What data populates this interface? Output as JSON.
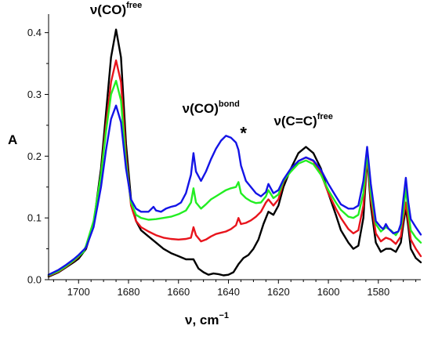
{
  "chart_data": {
    "type": "line",
    "xlabel_main": "ν, cm",
    "xlabel_sup": "−1",
    "ylabel": "A",
    "xlim": [
      1712,
      1563
    ],
    "ylim": [
      0,
      0.43
    ],
    "x_reversed": true,
    "grid": false,
    "x_ticks": [
      1700,
      1680,
      1660,
      1640,
      1620,
      1600,
      1580
    ],
    "x_tick_labels": [
      "1700",
      "1680",
      "1660",
      "1640",
      "1620",
      "1600",
      "1580"
    ],
    "y_ticks": [
      0.0,
      0.1,
      0.2,
      0.3,
      0.4
    ],
    "y_tick_labels": [
      "0.0",
      "0.1",
      "0.2",
      "0.3",
      "0.4"
    ],
    "annotations": [
      {
        "main": "ν(CO)",
        "sup": "free",
        "x": 1685,
        "y": 0.43
      },
      {
        "main": "ν(CO)",
        "sup": "bond",
        "x": 1647,
        "y": 0.27
      },
      {
        "main": "ν(C=C)",
        "sup": "free",
        "x": 1610,
        "y": 0.25
      },
      {
        "main": "*",
        "sup": "",
        "x": 1634,
        "y": 0.235
      }
    ],
    "series": [
      {
        "color": "#000000",
        "points": [
          [
            1712,
            0.005
          ],
          [
            1708,
            0.012
          ],
          [
            1705,
            0.02
          ],
          [
            1702,
            0.028
          ],
          [
            1700,
            0.034
          ],
          [
            1697,
            0.05
          ],
          [
            1694,
            0.09
          ],
          [
            1691,
            0.18
          ],
          [
            1689,
            0.27
          ],
          [
            1687,
            0.36
          ],
          [
            1685,
            0.405
          ],
          [
            1683,
            0.36
          ],
          [
            1681,
            0.22
          ],
          [
            1679,
            0.13
          ],
          [
            1677,
            0.095
          ],
          [
            1675,
            0.08
          ],
          [
            1672,
            0.07
          ],
          [
            1669,
            0.06
          ],
          [
            1666,
            0.05
          ],
          [
            1663,
            0.043
          ],
          [
            1660,
            0.038
          ],
          [
            1657,
            0.033
          ],
          [
            1654,
            0.033
          ],
          [
            1652,
            0.018
          ],
          [
            1650,
            0.012
          ],
          [
            1648,
            0.008
          ],
          [
            1646,
            0.01
          ],
          [
            1644,
            0.009
          ],
          [
            1642,
            0.007
          ],
          [
            1640,
            0.008
          ],
          [
            1638,
            0.012
          ],
          [
            1636,
            0.025
          ],
          [
            1634,
            0.035
          ],
          [
            1632,
            0.04
          ],
          [
            1630,
            0.05
          ],
          [
            1628,
            0.065
          ],
          [
            1626,
            0.09
          ],
          [
            1624,
            0.11
          ],
          [
            1622,
            0.105
          ],
          [
            1620,
            0.12
          ],
          [
            1618,
            0.15
          ],
          [
            1615,
            0.18
          ],
          [
            1612,
            0.205
          ],
          [
            1609,
            0.215
          ],
          [
            1606,
            0.205
          ],
          [
            1603,
            0.18
          ],
          [
            1600,
            0.14
          ],
          [
            1597,
            0.105
          ],
          [
            1595,
            0.08
          ],
          [
            1592,
            0.06
          ],
          [
            1590,
            0.05
          ],
          [
            1588,
            0.055
          ],
          [
            1586,
            0.1
          ],
          [
            1584.5,
            0.198
          ],
          [
            1583,
            0.12
          ],
          [
            1581,
            0.06
          ],
          [
            1579,
            0.045
          ],
          [
            1577,
            0.05
          ],
          [
            1575,
            0.05
          ],
          [
            1573,
            0.045
          ],
          [
            1571,
            0.06
          ],
          [
            1570,
            0.09
          ],
          [
            1569,
            0.117
          ],
          [
            1568,
            0.085
          ],
          [
            1567,
            0.05
          ],
          [
            1565,
            0.035
          ],
          [
            1563,
            0.028
          ]
        ]
      },
      {
        "color": "#e8141c",
        "points": [
          [
            1712,
            0.006
          ],
          [
            1708,
            0.013
          ],
          [
            1705,
            0.021
          ],
          [
            1702,
            0.03
          ],
          [
            1700,
            0.037
          ],
          [
            1697,
            0.052
          ],
          [
            1694,
            0.09
          ],
          [
            1691,
            0.17
          ],
          [
            1689,
            0.25
          ],
          [
            1687,
            0.32
          ],
          [
            1685,
            0.355
          ],
          [
            1683,
            0.32
          ],
          [
            1681,
            0.2
          ],
          [
            1679,
            0.12
          ],
          [
            1677,
            0.095
          ],
          [
            1675,
            0.085
          ],
          [
            1672,
            0.078
          ],
          [
            1669,
            0.072
          ],
          [
            1666,
            0.068
          ],
          [
            1663,
            0.066
          ],
          [
            1660,
            0.065
          ],
          [
            1657,
            0.066
          ],
          [
            1655,
            0.068
          ],
          [
            1654,
            0.085
          ],
          [
            1653,
            0.072
          ],
          [
            1651,
            0.062
          ],
          [
            1649,
            0.065
          ],
          [
            1647,
            0.07
          ],
          [
            1645,
            0.074
          ],
          [
            1643,
            0.076
          ],
          [
            1641,
            0.078
          ],
          [
            1639,
            0.082
          ],
          [
            1637,
            0.088
          ],
          [
            1636,
            0.1
          ],
          [
            1635,
            0.09
          ],
          [
            1633,
            0.092
          ],
          [
            1631,
            0.096
          ],
          [
            1629,
            0.102
          ],
          [
            1627,
            0.11
          ],
          [
            1625,
            0.125
          ],
          [
            1624,
            0.13
          ],
          [
            1622,
            0.12
          ],
          [
            1620,
            0.13
          ],
          [
            1618,
            0.158
          ],
          [
            1615,
            0.178
          ],
          [
            1612,
            0.192
          ],
          [
            1609,
            0.198
          ],
          [
            1606,
            0.192
          ],
          [
            1603,
            0.172
          ],
          [
            1600,
            0.14
          ],
          [
            1597,
            0.115
          ],
          [
            1595,
            0.1
          ],
          [
            1592,
            0.082
          ],
          [
            1590,
            0.075
          ],
          [
            1588,
            0.08
          ],
          [
            1586,
            0.12
          ],
          [
            1584.5,
            0.2
          ],
          [
            1583,
            0.13
          ],
          [
            1581,
            0.075
          ],
          [
            1579,
            0.062
          ],
          [
            1577,
            0.068
          ],
          [
            1575,
            0.065
          ],
          [
            1573,
            0.058
          ],
          [
            1571,
            0.07
          ],
          [
            1570,
            0.1
          ],
          [
            1569,
            0.125
          ],
          [
            1568,
            0.095
          ],
          [
            1567,
            0.065
          ],
          [
            1565,
            0.05
          ],
          [
            1563,
            0.038
          ]
        ]
      },
      {
        "color": "#22ee22",
        "points": [
          [
            1712,
            0.007
          ],
          [
            1708,
            0.014
          ],
          [
            1705,
            0.022
          ],
          [
            1702,
            0.031
          ],
          [
            1700,
            0.038
          ],
          [
            1698,
            0.045
          ],
          [
            1697,
            0.055
          ],
          [
            1694,
            0.095
          ],
          [
            1691,
            0.17
          ],
          [
            1689,
            0.24
          ],
          [
            1687,
            0.3
          ],
          [
            1685,
            0.322
          ],
          [
            1683,
            0.29
          ],
          [
            1681,
            0.19
          ],
          [
            1679,
            0.125
          ],
          [
            1677,
            0.105
          ],
          [
            1675,
            0.1
          ],
          [
            1672,
            0.097
          ],
          [
            1669,
            0.098
          ],
          [
            1666,
            0.1
          ],
          [
            1663,
            0.102
          ],
          [
            1660,
            0.106
          ],
          [
            1657,
            0.112
          ],
          [
            1655,
            0.125
          ],
          [
            1654,
            0.148
          ],
          [
            1653,
            0.125
          ],
          [
            1651,
            0.115
          ],
          [
            1649,
            0.122
          ],
          [
            1647,
            0.13
          ],
          [
            1645,
            0.135
          ],
          [
            1643,
            0.14
          ],
          [
            1641,
            0.145
          ],
          [
            1639,
            0.148
          ],
          [
            1637,
            0.15
          ],
          [
            1636,
            0.158
          ],
          [
            1635,
            0.14
          ],
          [
            1633,
            0.132
          ],
          [
            1631,
            0.127
          ],
          [
            1629,
            0.124
          ],
          [
            1627,
            0.125
          ],
          [
            1625,
            0.135
          ],
          [
            1624,
            0.145
          ],
          [
            1622,
            0.132
          ],
          [
            1620,
            0.138
          ],
          [
            1618,
            0.16
          ],
          [
            1615,
            0.175
          ],
          [
            1612,
            0.188
          ],
          [
            1609,
            0.193
          ],
          [
            1606,
            0.187
          ],
          [
            1603,
            0.17
          ],
          [
            1600,
            0.145
          ],
          [
            1597,
            0.125
          ],
          [
            1595,
            0.113
          ],
          [
            1592,
            0.102
          ],
          [
            1590,
            0.1
          ],
          [
            1588,
            0.105
          ],
          [
            1586,
            0.14
          ],
          [
            1584.5,
            0.205
          ],
          [
            1583,
            0.14
          ],
          [
            1581,
            0.09
          ],
          [
            1579,
            0.078
          ],
          [
            1577,
            0.085
          ],
          [
            1575,
            0.08
          ],
          [
            1573,
            0.072
          ],
          [
            1571,
            0.085
          ],
          [
            1570,
            0.11
          ],
          [
            1569,
            0.148
          ],
          [
            1568,
            0.11
          ],
          [
            1567,
            0.08
          ],
          [
            1565,
            0.068
          ],
          [
            1563,
            0.06
          ]
        ]
      },
      {
        "color": "#1414e6",
        "points": [
          [
            1712,
            0.008
          ],
          [
            1708,
            0.016
          ],
          [
            1705,
            0.024
          ],
          [
            1702,
            0.033
          ],
          [
            1700,
            0.04
          ],
          [
            1697,
            0.052
          ],
          [
            1694,
            0.085
          ],
          [
            1691,
            0.15
          ],
          [
            1689,
            0.21
          ],
          [
            1687,
            0.26
          ],
          [
            1685,
            0.282
          ],
          [
            1683,
            0.255
          ],
          [
            1681,
            0.18
          ],
          [
            1679,
            0.13
          ],
          [
            1677,
            0.115
          ],
          [
            1675,
            0.11
          ],
          [
            1672,
            0.11
          ],
          [
            1670,
            0.118
          ],
          [
            1669,
            0.112
          ],
          [
            1667,
            0.11
          ],
          [
            1665,
            0.115
          ],
          [
            1663,
            0.118
          ],
          [
            1661,
            0.12
          ],
          [
            1659,
            0.125
          ],
          [
            1657,
            0.14
          ],
          [
            1655,
            0.17
          ],
          [
            1654,
            0.205
          ],
          [
            1653,
            0.175
          ],
          [
            1651,
            0.16
          ],
          [
            1649,
            0.175
          ],
          [
            1647,
            0.195
          ],
          [
            1645,
            0.212
          ],
          [
            1643,
            0.225
          ],
          [
            1641,
            0.233
          ],
          [
            1639,
            0.23
          ],
          [
            1637,
            0.222
          ],
          [
            1636,
            0.21
          ],
          [
            1635,
            0.185
          ],
          [
            1633,
            0.16
          ],
          [
            1631,
            0.15
          ],
          [
            1629,
            0.14
          ],
          [
            1627,
            0.135
          ],
          [
            1625,
            0.142
          ],
          [
            1624,
            0.155
          ],
          [
            1622,
            0.14
          ],
          [
            1620,
            0.145
          ],
          [
            1618,
            0.162
          ],
          [
            1615,
            0.18
          ],
          [
            1612,
            0.192
          ],
          [
            1609,
            0.198
          ],
          [
            1606,
            0.193
          ],
          [
            1603,
            0.178
          ],
          [
            1600,
            0.155
          ],
          [
            1597,
            0.135
          ],
          [
            1595,
            0.122
          ],
          [
            1592,
            0.115
          ],
          [
            1590,
            0.115
          ],
          [
            1588,
            0.12
          ],
          [
            1586,
            0.16
          ],
          [
            1584.5,
            0.215
          ],
          [
            1583,
            0.155
          ],
          [
            1581,
            0.095
          ],
          [
            1579,
            0.085
          ],
          [
            1578,
            0.082
          ],
          [
            1577,
            0.09
          ],
          [
            1576,
            0.083
          ],
          [
            1574,
            0.075
          ],
          [
            1572,
            0.078
          ],
          [
            1571,
            0.09
          ],
          [
            1570,
            0.13
          ],
          [
            1569,
            0.165
          ],
          [
            1568,
            0.125
          ],
          [
            1567,
            0.098
          ],
          [
            1565,
            0.085
          ],
          [
            1563,
            0.073
          ]
        ]
      }
    ]
  }
}
